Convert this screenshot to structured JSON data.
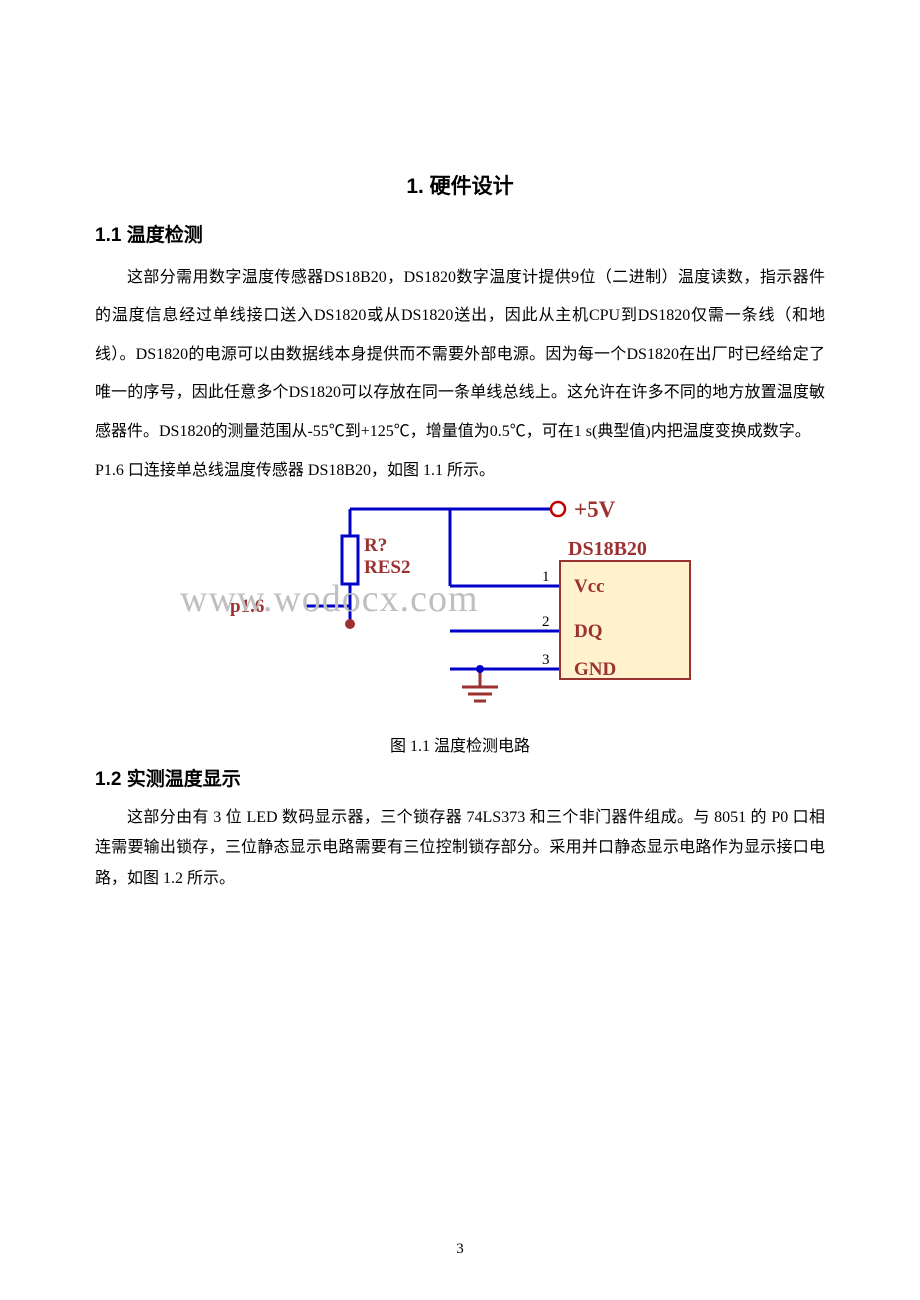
{
  "chapter": {
    "title": "1.  硬件设计"
  },
  "section1": {
    "title": "1.1 温度检测",
    "para1": "这部分需用数字温度传感器DS18B20，DS1820数字温度计提供9位（二进制）温度读数，指示器件的温度信息经过单线接口送入DS1820或从DS1820送出，因此从主机CPU到DS1820仅需一条线（和地线）。DS1820的电源可以由数据线本身提供而不需要外部电源。因为每一个DS1820在出厂时已经给定了唯一的序号，因此任意多个DS1820可以存放在同一条单线总线上。这允许在许多不同的地方放置温度敏感器件。DS1820的测量范围从-55℃到+125℃，增量值为0.5℃，可在1 s(典型值)内把温度变换成数字。",
    "para2": "P1.6 口连接单总线温度传感器 DS18B20，如图 1.1 所示。"
  },
  "figure1": {
    "caption": "图 1.1  温度检测电路",
    "labels": {
      "p16": "p1.6",
      "r_ref": "R?",
      "r_type": "RES2",
      "plus5v": "+5V",
      "chip": "DS18B20",
      "pin1": "1",
      "pin2": "2",
      "pin3": "3",
      "vcc": "Vcc",
      "dq": "DQ",
      "gnd": "GND"
    },
    "colors": {
      "wire": "#0000c8",
      "label": "#9c3131",
      "chip_fill": "#fff2cc",
      "chip_stroke": "#9c3131",
      "node_fill": "#9c3131",
      "gnd": "#9c3131",
      "plus5v_circle": "#c00000",
      "plus5v_text": "#9c3131",
      "pin_number": "#000000"
    },
    "stroke_width": 3,
    "text_fontsize": 19,
    "small_fontsize": 15
  },
  "section2": {
    "title": "1.2 实测温度显示",
    "para1": "这部分由有 3 位 LED 数码显示器，三个锁存器 74LS373 和三个非门器件组成。与 8051 的 P0 口相连需要输出锁存，三位静态显示电路需要有三位控制锁存部分。采用并口静态显示电路作为显示接口电路，如图 1.2 所示。"
  },
  "watermark_text": "www.wodocx.com",
  "page_number": "3"
}
